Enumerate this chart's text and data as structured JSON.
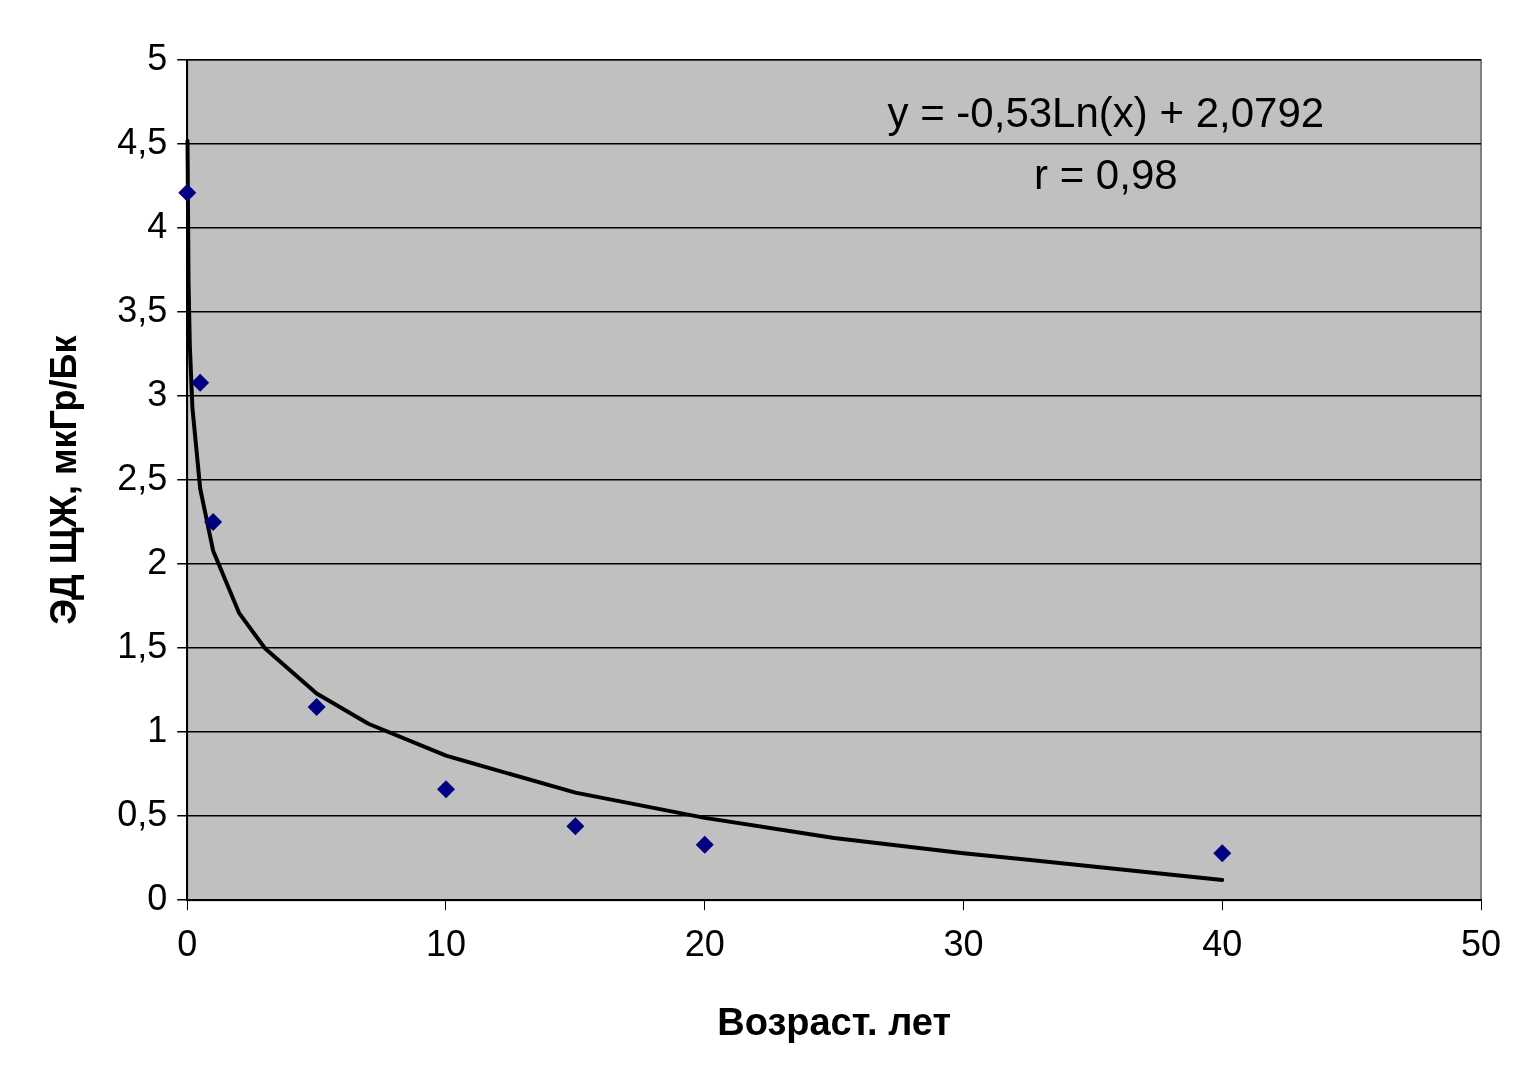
{
  "chart_data": {
    "type": "scatter",
    "xlabel": "Возраст. лет",
    "ylabel": "ЭД ЩЖ, мкГр/Бк",
    "annotations": [
      "y = -0,53Ln(x) + 2,0792",
      "r = 0,98"
    ],
    "xlim": [
      0,
      50
    ],
    "xticks": [
      0,
      10,
      20,
      30,
      40,
      50
    ],
    "ylim": [
      0,
      5
    ],
    "yticks": [
      0,
      {
        "value": 0.5,
        "label": "0,5"
      },
      1,
      {
        "value": 1.5,
        "label": "1,5"
      },
      2,
      {
        "value": 2.5,
        "label": "2,5"
      },
      3,
      {
        "value": 3.5,
        "label": "3,5"
      },
      4,
      {
        "value": 4.5,
        "label": "4,5"
      },
      5
    ],
    "grid": "y",
    "legend": false,
    "series": [
      {
        "color": "#000080",
        "marker": "diamond",
        "x": [
          0,
          0.5,
          1,
          5,
          10,
          15,
          20,
          40
        ],
        "values": [
          4.21,
          3.08,
          2.25,
          1.15,
          0.66,
          0.44,
          0.33,
          0.28
        ]
      },
      {
        "type": "line",
        "color": "#000000",
        "marker": "none",
        "line_style": "solid",
        "x": [
          0.01,
          0.05,
          0.1,
          0.2,
          0.5,
          1,
          2,
          3,
          5,
          7,
          10,
          15,
          20,
          25,
          30,
          35,
          40
        ],
        "values": [
          4.52,
          3.67,
          3.3,
          2.93,
          2.45,
          2.08,
          1.71,
          1.5,
          1.23,
          1.05,
          0.86,
          0.64,
          0.49,
          0.37,
          0.28,
          0.2,
          0.12
        ]
      }
    ]
  }
}
